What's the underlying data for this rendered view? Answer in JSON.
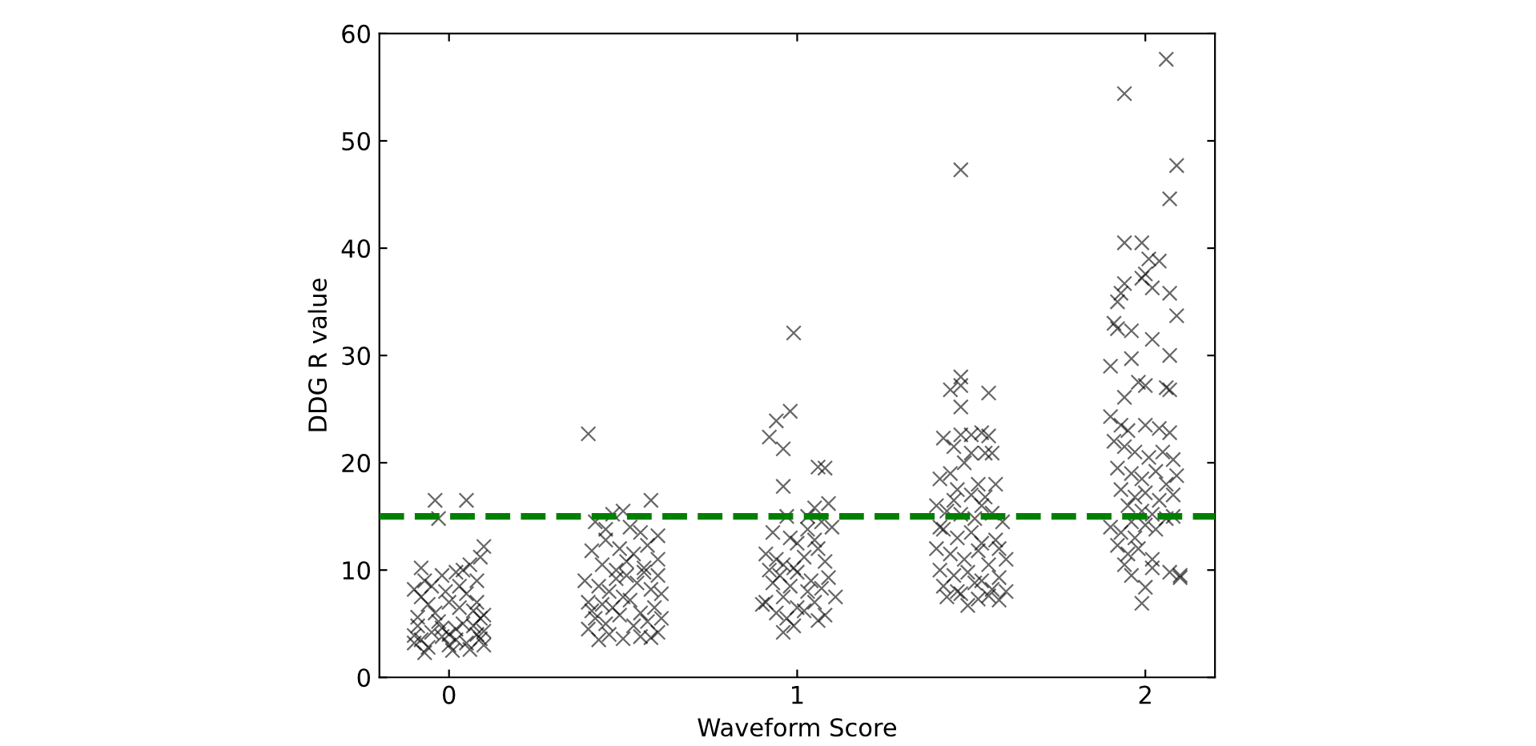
{
  "chart_data": {
    "type": "scatter",
    "xlabel": "Waveform Score",
    "ylabel": "DDG R value",
    "xlim": [
      -0.2,
      2.2
    ],
    "xticks": [
      0,
      1,
      2
    ],
    "ylim": [
      0,
      60
    ],
    "yticks": [
      0,
      10,
      20,
      30,
      40,
      50,
      60
    ],
    "marker": "cross",
    "grid": false,
    "legend": false,
    "ref_lines": [
      {
        "axis": "y",
        "value": 15,
        "color": "#008000",
        "line_style": "dashed"
      }
    ],
    "series": [
      {
        "color": "#000000",
        "x": [
          -0.08,
          -0.05,
          -0.02,
          0.02,
          0.05,
          0.08,
          -0.09,
          0.0,
          0.04,
          -0.06,
          0.09,
          -0.03,
          0.07,
          -0.1,
          0.1,
          0.01,
          -0.07,
          0.06,
          -0.04,
          0.03,
          -0.08,
          -0.1,
          0.0,
          0.05,
          -0.05,
          0.08,
          -0.02,
          0.02,
          0.06,
          0.09,
          0.1,
          -0.08,
          0.04,
          -0.06,
          0.07,
          0.1,
          -0.09,
          -0.04,
          -0.03,
          0.05,
          0.08,
          -0.01,
          0.03,
          -0.07,
          0.09,
          0.1,
          -0.1,
          0.0,
          0.02,
          -0.02,
          0.4,
          0.58,
          0.42,
          0.47,
          0.5,
          0.52,
          0.55,
          0.6,
          0.45,
          0.49,
          0.53,
          0.57,
          0.41,
          0.44,
          0.48,
          0.51,
          0.56,
          0.6,
          0.39,
          0.43,
          0.46,
          0.5,
          0.54,
          0.58,
          0.61,
          0.4,
          0.44,
          0.47,
          0.52,
          0.55,
          0.59,
          0.42,
          0.45,
          0.49,
          0.53,
          0.57,
          0.61,
          0.4,
          0.46,
          0.5,
          0.55,
          0.6,
          0.43,
          0.58,
          0.48,
          0.51,
          0.56,
          0.41,
          0.6,
          0.45,
          0.99,
          0.98,
          0.94,
          0.92,
          0.96,
          1.06,
          1.08,
          0.96,
          1.05,
          1.09,
          1.03,
          0.97,
          1.07,
          1.1,
          0.93,
          0.98,
          1.0,
          1.06,
          0.91,
          0.94,
          0.96,
          1.02,
          1.08,
          0.92,
          0.95,
          1.0,
          1.04,
          1.09,
          0.93,
          0.98,
          1.03,
          1.07,
          1.11,
          0.91,
          0.96,
          1.05,
          1.0,
          0.9,
          0.94,
          1.02,
          1.08,
          0.97,
          1.06,
          0.99,
          0.96,
          1.03,
          1.05,
          0.99,
          1.47,
          1.47,
          1.44,
          1.47,
          1.55,
          1.47,
          1.42,
          1.47,
          1.5,
          1.53,
          1.55,
          1.45,
          1.5,
          1.54,
          1.56,
          1.48,
          1.41,
          1.44,
          1.52,
          1.57,
          1.46,
          1.5,
          1.54,
          1.4,
          1.43,
          1.47,
          1.51,
          1.56,
          1.59,
          1.42,
          1.46,
          1.5,
          1.53,
          1.57,
          1.4,
          1.44,
          1.48,
          1.52,
          1.55,
          1.6,
          1.41,
          1.45,
          1.49,
          1.53,
          1.58,
          1.42,
          1.46,
          1.51,
          1.56,
          1.6,
          1.43,
          1.47,
          1.52,
          1.55,
          1.49,
          1.58,
          1.45,
          1.53,
          1.41,
          1.58,
          2.06,
          1.94,
          2.09,
          2.07,
          1.94,
          1.99,
          2.01,
          2.04,
          2.0,
          1.99,
          2.02,
          1.94,
          1.93,
          1.92,
          2.07,
          2.09,
          1.91,
          1.92,
          1.96,
          2.02,
          2.07,
          1.96,
          1.9,
          1.98,
          2.0,
          2.06,
          2.07,
          1.94,
          1.9,
          1.93,
          1.95,
          2.0,
          2.04,
          2.07,
          1.91,
          1.94,
          1.97,
          2.01,
          2.05,
          2.08,
          1.92,
          1.96,
          1.99,
          2.03,
          2.06,
          2.09,
          1.93,
          1.97,
          2.0,
          2.04,
          2.08,
          1.95,
          1.99,
          2.02,
          2.06,
          1.9,
          1.93,
          1.97,
          2.0,
          2.03,
          2.08,
          1.92,
          1.95,
          1.98,
          2.02,
          1.94,
          1.96,
          2.07,
          2.1,
          2.1,
          2.0,
          1.99,
          2.02,
          1.96
        ],
        "values": [
          3.5,
          4.2,
          3.8,
          4.5,
          3.2,
          4.0,
          4.8,
          3.0,
          5.0,
          2.8,
          3.6,
          5.2,
          4.8,
          3.9,
          4.3,
          2.5,
          2.3,
          2.6,
          6.0,
          6.5,
          7.5,
          8.2,
          7.0,
          7.8,
          8.5,
          9.0,
          9.5,
          9.8,
          10.5,
          11.2,
          12.2,
          10.2,
          10.0,
          6.8,
          6.2,
          5.8,
          5.6,
          16.5,
          14.8,
          16.5,
          7.0,
          8.0,
          8.5,
          9.0,
          5.5,
          3.0,
          3.2,
          4.0,
          3.5,
          4.6,
          22.7,
          16.5,
          14.5,
          15.2,
          15.5,
          14.0,
          13.5,
          13.2,
          12.8,
          12.0,
          11.5,
          12.3,
          11.8,
          10.5,
          10.0,
          9.5,
          10.2,
          11.0,
          9.0,
          8.5,
          8.0,
          7.5,
          8.8,
          8.2,
          7.8,
          7.0,
          6.8,
          6.5,
          7.2,
          6.0,
          6.5,
          5.5,
          5.0,
          5.8,
          4.8,
          5.2,
          5.5,
          4.5,
          4.0,
          3.6,
          3.8,
          4.2,
          3.5,
          3.7,
          9.2,
          10.8,
          9.8,
          6.2,
          9.5,
          13.8,
          32.1,
          24.8,
          23.9,
          22.4,
          21.3,
          19.6,
          19.5,
          17.8,
          15.8,
          16.2,
          15.0,
          15.0,
          14.5,
          14.0,
          13.5,
          13.0,
          12.5,
          12.0,
          11.5,
          11.0,
          10.5,
          11.2,
          10.8,
          10.0,
          9.5,
          9.8,
          9.0,
          9.3,
          8.8,
          8.5,
          8.0,
          8.3,
          7.5,
          7.0,
          7.5,
          7.0,
          6.5,
          6.8,
          6.0,
          6.2,
          5.8,
          5.5,
          5.3,
          4.8,
          4.2,
          13.8,
          12.8,
          10.2,
          47.3,
          28.0,
          26.8,
          27.2,
          26.5,
          25.2,
          22.3,
          22.6,
          22.6,
          22.8,
          22.5,
          21.5,
          20.9,
          20.9,
          20.9,
          20.0,
          18.5,
          19.0,
          18.0,
          18.0,
          17.5,
          17.0,
          16.8,
          16.0,
          15.5,
          15.2,
          14.8,
          15.3,
          14.5,
          13.8,
          13.0,
          13.5,
          12.5,
          12.8,
          12.0,
          11.5,
          11.0,
          11.8,
          10.5,
          11.0,
          10.0,
          9.5,
          9.8,
          9.0,
          9.3,
          8.5,
          8.0,
          8.8,
          8.2,
          8.0,
          7.5,
          7.8,
          7.3,
          7.6,
          6.7,
          7.2,
          16.5,
          16.0,
          14.0,
          12.0,
          57.6,
          54.4,
          47.7,
          44.6,
          40.5,
          40.5,
          39.0,
          38.8,
          37.6,
          37.2,
          36.3,
          36.7,
          35.8,
          35.0,
          35.8,
          33.7,
          33.0,
          32.5,
          32.3,
          31.5,
          30.0,
          29.7,
          29.0,
          27.5,
          27.2,
          27.0,
          26.8,
          26.1,
          24.3,
          23.5,
          23.0,
          23.5,
          23.2,
          22.8,
          22.0,
          21.5,
          21.0,
          20.5,
          21.0,
          20.3,
          19.5,
          19.0,
          18.5,
          19.2,
          18.0,
          18.8,
          17.5,
          16.8,
          17.2,
          16.5,
          17.0,
          16.0,
          15.5,
          15.2,
          14.8,
          14.0,
          13.5,
          13.0,
          14.2,
          13.8,
          15.0,
          12.3,
          11.5,
          12.0,
          11.0,
          10.5,
          9.5,
          9.8,
          9.3,
          9.5,
          8.4,
          6.9,
          10.2,
          14.5
        ]
      }
    ]
  }
}
